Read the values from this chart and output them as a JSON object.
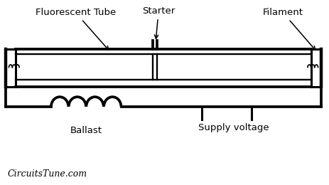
{
  "background_color": "#ffffff",
  "labels": {
    "fluorescent_tube": "Fluorescent Tube",
    "starter": "Starter",
    "filament": "Filament",
    "ballast": "Ballast",
    "supply_voltage": "Supply voltage",
    "watermark": "CircuitsTune.com"
  },
  "colors": {
    "line": "#000000",
    "background": "#ffffff",
    "text": "#000000"
  },
  "lw": 2.2
}
